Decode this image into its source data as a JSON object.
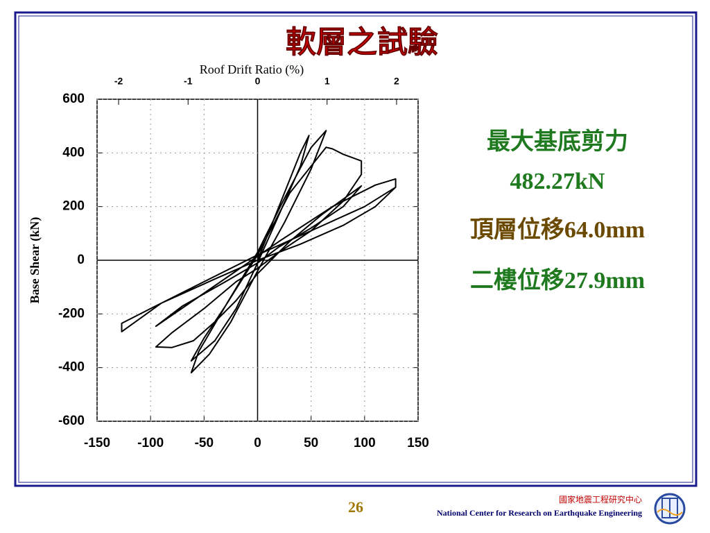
{
  "slide": {
    "title": "軟層之試驗",
    "notes": [
      "最大基底剪力",
      "482.27kN",
      "頂層位移64.0mm",
      "二樓位移27.9mm"
    ],
    "page": "26",
    "footer_cn": "國家地震工程研究中心",
    "footer_en": "National Center for Research on Earthquake Engineering"
  },
  "chart_data": {
    "type": "line",
    "ylabel": "Base Shear (kN)",
    "x2label": "Roof Drift Ratio (%)",
    "xlim": [
      -150,
      150
    ],
    "ylim": [
      -600,
      600
    ],
    "x2lim": [
      -2.31,
      2.31
    ],
    "xticks": [
      -150,
      -100,
      -50,
      0,
      50,
      100,
      150
    ],
    "yticks": [
      -600,
      -400,
      -200,
      0,
      200,
      400,
      600
    ],
    "x2ticks": [
      -2,
      -1,
      0,
      1,
      2
    ],
    "grid": true,
    "color": "#000000",
    "x": [
      0,
      10,
      25,
      40,
      48,
      40,
      20,
      0,
      -20,
      -40,
      -62,
      -50,
      -30,
      0,
      25,
      50,
      64,
      50,
      25,
      0,
      -25,
      -45,
      -62,
      -55,
      -30,
      0,
      30,
      64,
      70,
      80,
      97,
      97,
      80,
      50,
      20,
      0,
      -20,
      -50,
      -80,
      -95,
      -80,
      -60,
      -40,
      -20,
      0,
      30,
      60,
      97,
      80,
      50,
      20,
      0,
      -30,
      -70,
      -95,
      -60,
      -20,
      20,
      70,
      110,
      129,
      129,
      110,
      80,
      40,
      0,
      -40,
      -90,
      -127,
      -127,
      -100,
      -50,
      0,
      50,
      100,
      129
    ],
    "values": [
      0,
      100,
      250,
      400,
      465,
      350,
      170,
      -10,
      -180,
      -300,
      -375,
      -290,
      -170,
      30,
      230,
      420,
      483,
      340,
      140,
      -40,
      -230,
      -350,
      -419,
      -340,
      -170,
      20,
      250,
      421,
      415,
      395,
      370,
      320,
      220,
      110,
      30,
      -30,
      -80,
      -180,
      -270,
      -323,
      -325,
      -300,
      -230,
      -150,
      -50,
      70,
      170,
      277,
      200,
      120,
      50,
      -10,
      -80,
      -170,
      -246,
      -150,
      -40,
      70,
      200,
      280,
      303,
      272,
      200,
      130,
      60,
      0,
      -70,
      -160,
      -266,
      -235,
      -180,
      -80,
      20,
      110,
      200,
      272
    ]
  }
}
